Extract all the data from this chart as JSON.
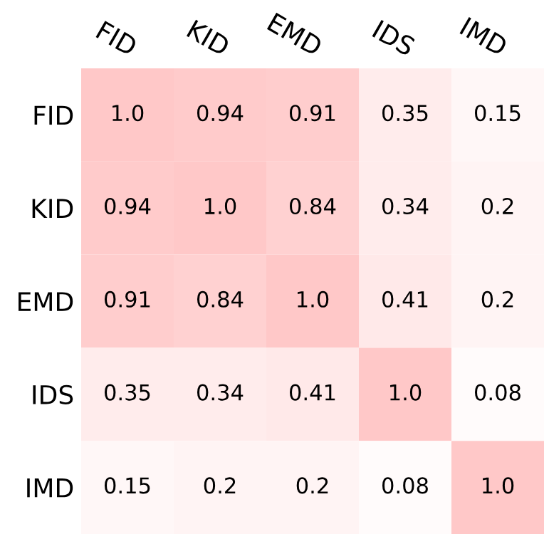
{
  "chart_data": {
    "type": "heatmap",
    "categories": [
      "FID",
      "KID",
      "EMD",
      "IDS",
      "IMD"
    ],
    "y_categories": [
      "FID",
      "KID",
      "EMD",
      "IDS",
      "IMD"
    ],
    "cells": [
      [
        1.0,
        0.94,
        0.91,
        0.35,
        0.15
      ],
      [
        0.94,
        1.0,
        0.84,
        0.34,
        0.2
      ],
      [
        0.91,
        0.84,
        1.0,
        0.41,
        0.2
      ],
      [
        0.35,
        0.34,
        0.41,
        1.0,
        0.08
      ],
      [
        0.15,
        0.2,
        0.2,
        0.08,
        1.0
      ]
    ],
    "cell_labels": [
      [
        "1.0",
        "0.94",
        "0.91",
        "0.35",
        "0.15"
      ],
      [
        "0.94",
        "1.0",
        "0.84",
        "0.34",
        "0.2"
      ],
      [
        "0.91",
        "0.84",
        "1.0",
        "0.41",
        "0.2"
      ],
      [
        "0.35",
        "0.34",
        "0.41",
        "1.0",
        "0.08"
      ],
      [
        "0.15",
        "0.2",
        "0.2",
        "0.08",
        "1.0"
      ]
    ]
  }
}
